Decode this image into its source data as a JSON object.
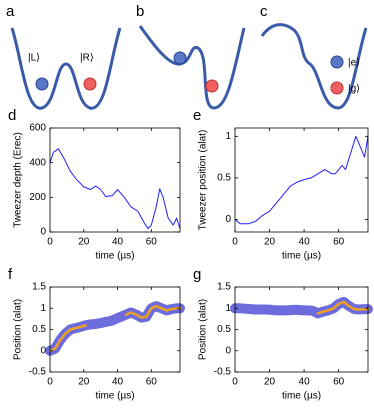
{
  "diagrams": [
    {
      "label": "a",
      "states": [
        "|L⟩",
        "|R⟩"
      ]
    },
    {
      "label": "b"
    },
    {
      "label": "c",
      "states": [
        "|e⟩",
        "|g⟩"
      ]
    }
  ],
  "chart_data": [
    {
      "type": "line",
      "label": "d",
      "xlabel": "time (µs)",
      "ylabel": "Tweezer depth (Erec)",
      "x": [
        0,
        2,
        5,
        8,
        12,
        16,
        20,
        24,
        27,
        30,
        33,
        37,
        40,
        44,
        48,
        52,
        56,
        58,
        60,
        63,
        65,
        67,
        70,
        73,
        75,
        77
      ],
      "series": [
        {
          "color": "#2020ff",
          "values": [
            400,
            460,
            480,
            430,
            350,
            300,
            260,
            245,
            265,
            245,
            205,
            210,
            245,
            200,
            145,
            120,
            50,
            20,
            40,
            150,
            250,
            200,
            80,
            40,
            80,
            20
          ]
        }
      ],
      "xlim": [
        0,
        77
      ],
      "ylim": [
        0,
        600
      ],
      "xticks": [
        0,
        20,
        40,
        60
      ],
      "yticks": [
        0,
        200,
        400,
        600
      ]
    },
    {
      "type": "line",
      "label": "e",
      "xlabel": "time (µs)",
      "ylabel": "Tweezer position (alat)",
      "x": [
        0,
        3,
        8,
        12,
        16,
        20,
        24,
        28,
        32,
        36,
        40,
        44,
        48,
        52,
        56,
        58,
        62,
        64,
        67,
        70,
        72,
        75,
        77
      ],
      "series": [
        {
          "color": "#2020ff",
          "values": [
            0,
            -0.05,
            -0.05,
            -0.02,
            0.05,
            0.1,
            0.2,
            0.3,
            0.4,
            0.45,
            0.48,
            0.5,
            0.55,
            0.6,
            0.55,
            0.55,
            0.65,
            0.6,
            0.8,
            1.0,
            0.9,
            0.75,
            1.0
          ]
        }
      ],
      "xlim": [
        0,
        77
      ],
      "ylim": [
        -0.15,
        1.1
      ],
      "xticks": [
        0,
        20,
        40,
        60
      ],
      "yticks": [
        0,
        0.5,
        1
      ]
    },
    {
      "type": "density",
      "label": "f",
      "xlabel": "time (µs)",
      "ylabel": "Position (alat)",
      "x": [
        0,
        3,
        6,
        9,
        12,
        15,
        18,
        21,
        24,
        27,
        30,
        33,
        36,
        39,
        42,
        45,
        48,
        51,
        54,
        57,
        60,
        63,
        66,
        69,
        72,
        75,
        77
      ],
      "series": [
        {
          "color": "#3b3bd0",
          "values": [
            0,
            0.05,
            0.25,
            0.4,
            0.5,
            0.53,
            0.56,
            0.6,
            0.62,
            0.63,
            0.65,
            0.68,
            0.7,
            0.75,
            0.8,
            0.85,
            0.9,
            0.85,
            0.78,
            0.8,
            1.0,
            1.05,
            1.0,
            0.95,
            0.98,
            1.0,
            1.0
          ]
        },
        {
          "color": "#f0a020",
          "values": [
            0,
            0.05,
            0.25,
            0.4,
            0.5,
            0.53,
            0.56,
            0.6,
            null,
            null,
            null,
            null,
            null,
            null,
            null,
            0.85,
            0.9,
            0.85,
            0.78,
            0.8,
            1.0,
            1.05,
            1.0,
            0.95,
            0.98,
            1.0,
            1.0
          ]
        }
      ],
      "xlim": [
        0,
        77
      ],
      "ylim": [
        -0.5,
        1.5
      ],
      "xticks": [
        0,
        20,
        40,
        60
      ],
      "yticks": [
        -0.5,
        0,
        0.5,
        1,
        1.5
      ]
    },
    {
      "type": "density",
      "label": "g",
      "xlabel": "time (µs)",
      "ylabel": "Position (alat)",
      "x": [
        0,
        3,
        6,
        9,
        12,
        15,
        18,
        21,
        24,
        27,
        30,
        33,
        36,
        39,
        42,
        45,
        48,
        51,
        54,
        57,
        60,
        63,
        66,
        69,
        72,
        75,
        77
      ],
      "series": [
        {
          "color": "#3b3bd0",
          "values": [
            1,
            1,
            0.99,
            0.98,
            0.97,
            0.97,
            0.97,
            0.96,
            0.95,
            0.95,
            0.95,
            0.96,
            0.96,
            0.95,
            0.95,
            0.94,
            0.88,
            0.92,
            0.95,
            1.0,
            1.1,
            1.15,
            1.05,
            0.98,
            0.97,
            0.98,
            0.98
          ]
        },
        {
          "color": "#f0a020",
          "values": [
            null,
            null,
            null,
            null,
            null,
            null,
            null,
            null,
            null,
            null,
            null,
            null,
            null,
            null,
            null,
            null,
            0.88,
            0.92,
            0.95,
            1.0,
            1.1,
            1.15,
            1.05,
            0.98,
            0.97,
            0.98,
            0.98
          ]
        }
      ],
      "xlim": [
        0,
        77
      ],
      "ylim": [
        -0.5,
        1.5
      ],
      "xticks": [
        0,
        20,
        40,
        60
      ],
      "yticks": [
        -0.5,
        0,
        0.5,
        1,
        1.5
      ]
    }
  ]
}
